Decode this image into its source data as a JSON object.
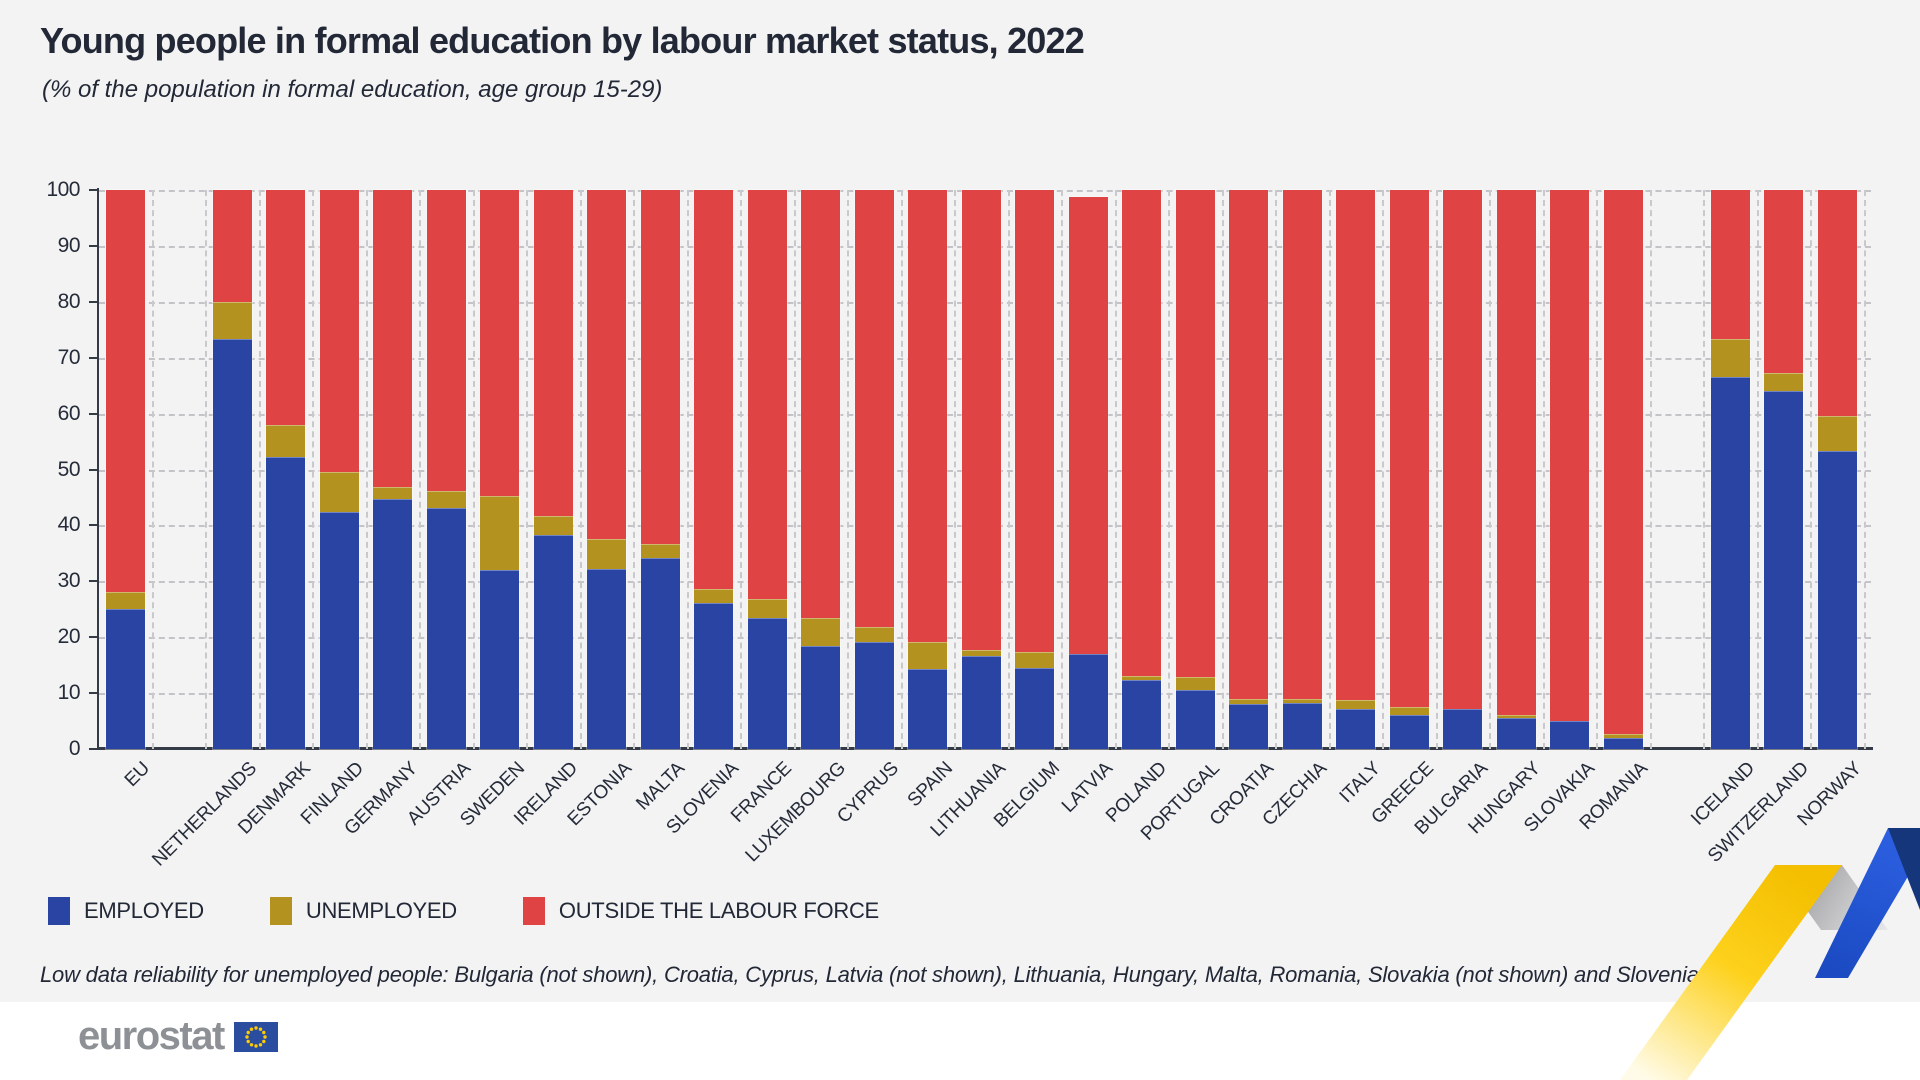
{
  "header": {
    "title": "Young people in formal education by labour market status, 2022",
    "subtitle": "(% of the population in formal education, age group 15-29)"
  },
  "chart_data": {
    "type": "bar",
    "stacked": true,
    "title": "Young people in formal education by labour market status, 2022",
    "subtitle": "(% of the population in formal education, age group 15-29)",
    "ylabel": "% of the population in formal education",
    "ylim": [
      0,
      100
    ],
    "yticks": [
      0,
      10,
      20,
      30,
      40,
      50,
      60,
      70,
      80,
      90,
      100
    ],
    "grid": "dashed",
    "legend_position": "bottom",
    "categories": [
      "EU",
      "NETHERLANDS",
      "DENMARK",
      "FINLAND",
      "GERMANY",
      "AUSTRIA",
      "SWEDEN",
      "IRELAND",
      "ESTONIA",
      "MALTA",
      "SLOVENIA",
      "FRANCE",
      "LUXEMBOURG",
      "CYPRUS",
      "SPAIN",
      "LITHUANIA",
      "BELGIUM",
      "LATVIA",
      "POLAND",
      "PORTUGAL",
      "CROATIA",
      "CZECHIA",
      "ITALY",
      "GREECE",
      "BULGARIA",
      "HUNGARY",
      "SLOVAKIA",
      "ROMANIA",
      "ICELAND",
      "SWITZERLAND",
      "NORWAY"
    ],
    "slots": [
      0,
      2,
      3,
      4,
      5,
      6,
      7,
      8,
      9,
      10,
      11,
      12,
      13,
      14,
      15,
      16,
      17,
      18,
      19,
      20,
      21,
      22,
      23,
      24,
      25,
      26,
      27,
      28,
      30,
      31,
      32
    ],
    "series": [
      {
        "name": "EMPLOYED",
        "color": "#2a44a4",
        "values": [
          25.1,
          73.4,
          52.2,
          42.4,
          44.7,
          43.2,
          32.1,
          38.2,
          32.2,
          34.1,
          26.1,
          23.5,
          18.5,
          19.2,
          14.4,
          16.7,
          14.5,
          17.0,
          12.4,
          10.5,
          8.0,
          8.2,
          7.1,
          6.0,
          7.1,
          5.5,
          5.1,
          1.9,
          66.6,
          64.0,
          53.3
        ]
      },
      {
        "name": "UNEMPLOYED",
        "color": "#b3921f",
        "values": [
          3.0,
          6.5,
          5.8,
          7.2,
          2.1,
          3.0,
          13.2,
          3.4,
          5.4,
          2.6,
          2.5,
          3.4,
          5.0,
          2.6,
          4.8,
          1.1,
          2.9,
          0,
          0.7,
          2.4,
          1.0,
          0.7,
          1.7,
          1.5,
          0,
          0.5,
          0,
          0.7,
          6.7,
          3.2,
          6.2
        ]
      },
      {
        "name": "OUTSIDE THE LABOUR FORCE",
        "color": "#e04343",
        "values": [
          71.9,
          20.1,
          42.0,
          50.4,
          53.2,
          53.8,
          54.7,
          58.4,
          62.4,
          63.3,
          71.4,
          73.1,
          76.5,
          78.2,
          80.8,
          82.2,
          82.6,
          81.7,
          86.9,
          87.1,
          91.0,
          91.1,
          91.2,
          92.5,
          92.9,
          94.0,
          94.9,
          97.4,
          26.7,
          32.8,
          40.5
        ]
      }
    ],
    "footnote": "Low data reliability for unemployed people: Bulgaria (not shown), Croatia, Cyprus, Latvia (not shown), Lithuania, Hungary, Malta, Romania, Slovakia (not shown) and Slovenia"
  },
  "footer": {
    "logo_text": "eurostat",
    "flag_icon": "eu-flag-icon"
  },
  "decoration": {
    "ribbon_yellow": "#f9c606",
    "ribbon_gray": "#97989b",
    "ribbon_blue": "#2b5be0",
    "ribbon_dark_blue": "#16367c"
  }
}
